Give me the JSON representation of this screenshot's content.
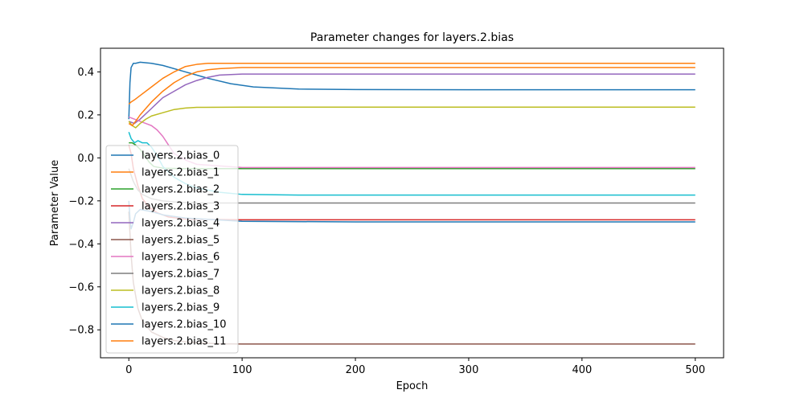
{
  "chart_data": {
    "type": "line",
    "title": "Parameter changes for layers.2.bias",
    "xlabel": "Epoch",
    "ylabel": "Parameter Value",
    "xlim": [
      -25,
      525
    ],
    "ylim": [
      -0.93,
      0.51
    ],
    "xticks": [
      0,
      100,
      200,
      300,
      400,
      500
    ],
    "yticks": [
      -0.8,
      -0.6,
      -0.4,
      -0.2,
      0.0,
      0.2,
      0.4
    ],
    "xtick_labels": [
      "0",
      "100",
      "200",
      "300",
      "400",
      "500"
    ],
    "ytick_labels": [
      "−0.8",
      "−0.6",
      "−0.4",
      "−0.2",
      "0.0",
      "0.2",
      "0.4"
    ],
    "grid": false,
    "legend_position": "lower-left",
    "series": [
      {
        "name": "layers.2.bias_0",
        "color": "#1f77b4",
        "x": [
          0,
          1,
          2,
          4,
          6,
          10,
          20,
          30,
          50,
          70,
          90,
          110,
          150,
          200,
          300,
          400,
          500
        ],
        "y": [
          0.18,
          0.35,
          0.42,
          0.44,
          0.44,
          0.445,
          0.44,
          0.43,
          0.4,
          0.37,
          0.345,
          0.33,
          0.32,
          0.318,
          0.317,
          0.317,
          0.317
        ]
      },
      {
        "name": "layers.2.bias_1",
        "color": "#ff7f0e",
        "x": [
          0,
          2,
          5,
          10,
          20,
          30,
          40,
          50,
          60,
          70,
          100,
          200,
          300,
          400,
          500
        ],
        "y": [
          0.25,
          0.26,
          0.27,
          0.29,
          0.33,
          0.37,
          0.4,
          0.425,
          0.435,
          0.44,
          0.44,
          0.44,
          0.44,
          0.44,
          0.44
        ]
      },
      {
        "name": "layers.2.bias_2",
        "color": "#2ca02c",
        "x": [
          0,
          3,
          6,
          10,
          14,
          18,
          22,
          30,
          50,
          100,
          200,
          300,
          400,
          500
        ],
        "y": [
          0.07,
          0.07,
          0.06,
          0.04,
          0.01,
          -0.02,
          -0.04,
          -0.048,
          -0.05,
          -0.05,
          -0.05,
          -0.05,
          -0.05,
          -0.05
        ]
      },
      {
        "name": "layers.2.bias_3",
        "color": "#d62728",
        "x": [
          0,
          2,
          4,
          8,
          12,
          18,
          25,
          35,
          50,
          100,
          200,
          300,
          400,
          500
        ],
        "y": [
          0.06,
          0.02,
          -0.05,
          -0.13,
          -0.19,
          -0.23,
          -0.255,
          -0.275,
          -0.285,
          -0.288,
          -0.288,
          -0.288,
          -0.288,
          -0.288
        ]
      },
      {
        "name": "layers.2.bias_4",
        "color": "#9467bd",
        "x": [
          0,
          5,
          10,
          20,
          30,
          40,
          50,
          60,
          70,
          80,
          100,
          200,
          300,
          400,
          500
        ],
        "y": [
          0.17,
          0.16,
          0.18,
          0.23,
          0.28,
          0.31,
          0.34,
          0.36,
          0.375,
          0.385,
          0.39,
          0.39,
          0.39,
          0.39,
          0.39
        ]
      },
      {
        "name": "layers.2.bias_5",
        "color": "#8c564b",
        "x": [
          0,
          2,
          4,
          8,
          12,
          20,
          30,
          40,
          60,
          80,
          100,
          200,
          300,
          400,
          500
        ],
        "y": [
          -0.25,
          -0.45,
          -0.58,
          -0.7,
          -0.76,
          -0.81,
          -0.835,
          -0.85,
          -0.86,
          -0.865,
          -0.866,
          -0.866,
          -0.866,
          -0.866,
          -0.866
        ]
      },
      {
        "name": "layers.2.bias_6",
        "color": "#e377c2",
        "x": [
          0,
          5,
          10,
          15,
          20,
          25,
          30,
          35,
          40,
          50,
          60,
          100,
          200,
          300,
          400,
          500
        ],
        "y": [
          0.19,
          0.18,
          0.17,
          0.16,
          0.15,
          0.13,
          0.1,
          0.06,
          0.02,
          -0.01,
          -0.03,
          -0.045,
          -0.045,
          -0.045,
          -0.045,
          -0.045
        ]
      },
      {
        "name": "layers.2.bias_7",
        "color": "#7f7f7f",
        "x": [
          0,
          2,
          4,
          8,
          12,
          20,
          30,
          40,
          60,
          100,
          200,
          300,
          400,
          500
        ],
        "y": [
          -0.05,
          -0.08,
          -0.11,
          -0.15,
          -0.17,
          -0.19,
          -0.2,
          -0.205,
          -0.21,
          -0.21,
          -0.21,
          -0.21,
          -0.21,
          -0.21
        ]
      },
      {
        "name": "layers.2.bias_8",
        "color": "#bcbd22",
        "x": [
          0,
          3,
          6,
          10,
          15,
          20,
          30,
          40,
          50,
          60,
          100,
          200,
          300,
          400,
          500
        ],
        "y": [
          0.17,
          0.15,
          0.14,
          0.16,
          0.18,
          0.195,
          0.21,
          0.225,
          0.232,
          0.235,
          0.236,
          0.236,
          0.236,
          0.236,
          0.236
        ]
      },
      {
        "name": "layers.2.bias_9",
        "color": "#17becf",
        "x": [
          0,
          2,
          5,
          8,
          12,
          16,
          20,
          25,
          30,
          40,
          50,
          60,
          80,
          100,
          150,
          200,
          300,
          400,
          500
        ],
        "y": [
          0.12,
          0.09,
          0.07,
          0.08,
          0.07,
          0.07,
          0.05,
          0.01,
          -0.04,
          -0.09,
          -0.12,
          -0.14,
          -0.16,
          -0.17,
          -0.173,
          -0.173,
          -0.173,
          -0.173,
          -0.173
        ]
      },
      {
        "name": "layers.2.bias_10",
        "color": "#1f77b4",
        "x": [
          0,
          1,
          2,
          4,
          6,
          10,
          15,
          20,
          30,
          50,
          100,
          200,
          300,
          400,
          500
        ],
        "y": [
          -0.2,
          -0.28,
          -0.33,
          -0.3,
          -0.26,
          -0.24,
          -0.245,
          -0.25,
          -0.265,
          -0.28,
          -0.295,
          -0.298,
          -0.298,
          -0.298,
          -0.298
        ]
      },
      {
        "name": "layers.2.bias_11",
        "color": "#ff7f0e",
        "x": [
          0,
          3,
          6,
          10,
          20,
          30,
          40,
          50,
          60,
          70,
          80,
          100,
          200,
          300,
          400,
          500
        ],
        "y": [
          0.16,
          0.15,
          0.17,
          0.2,
          0.26,
          0.31,
          0.35,
          0.38,
          0.4,
          0.41,
          0.415,
          0.42,
          0.42,
          0.42,
          0.42,
          0.42
        ]
      }
    ]
  }
}
